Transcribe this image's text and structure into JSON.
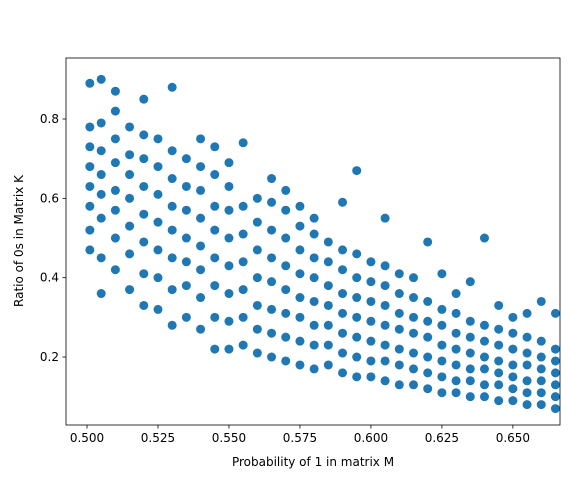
{
  "chart_data": {
    "type": "scatter",
    "xlabel": "Probability of 1 in matrix M",
    "ylabel": "Ratio of 0s in Matrix K",
    "color": "#1f77b4",
    "xlim": [
      0.4926,
      0.6666
    ],
    "ylim": [
      0.0286,
      0.9538
    ],
    "xticks": [
      {
        "value": 0.5,
        "label": "0.500"
      },
      0.525,
      {
        "value": 0.55,
        "label": "0.550"
      },
      0.575,
      {
        "value": 0.6,
        "label": "0.600"
      },
      0.625,
      {
        "value": 0.65,
        "label": "0.650"
      }
    ],
    "yticks": [
      0.2,
      0.4,
      0.6,
      0.8
    ],
    "x": [
      0.501,
      0.501,
      0.501,
      0.501,
      0.501,
      0.501,
      0.501,
      0.501,
      0.505,
      0.505,
      0.505,
      0.505,
      0.505,
      0.505,
      0.505,
      0.505,
      0.51,
      0.51,
      0.51,
      0.51,
      0.51,
      0.51,
      0.51,
      0.51,
      0.515,
      0.515,
      0.515,
      0.515,
      0.515,
      0.515,
      0.515,
      0.52,
      0.52,
      0.52,
      0.52,
      0.52,
      0.52,
      0.52,
      0.52,
      0.525,
      0.525,
      0.525,
      0.525,
      0.525,
      0.525,
      0.525,
      0.53,
      0.53,
      0.53,
      0.53,
      0.53,
      0.53,
      0.53,
      0.53,
      0.535,
      0.535,
      0.535,
      0.535,
      0.535,
      0.535,
      0.535,
      0.54,
      0.54,
      0.54,
      0.54,
      0.54,
      0.54,
      0.54,
      0.54,
      0.545,
      0.545,
      0.545,
      0.545,
      0.545,
      0.545,
      0.545,
      0.545,
      0.55,
      0.55,
      0.55,
      0.55,
      0.55,
      0.55,
      0.55,
      0.55,
      0.555,
      0.555,
      0.555,
      0.555,
      0.555,
      0.555,
      0.555,
      0.56,
      0.56,
      0.56,
      0.56,
      0.56,
      0.56,
      0.56,
      0.565,
      0.565,
      0.565,
      0.565,
      0.565,
      0.565,
      0.565,
      0.565,
      0.57,
      0.57,
      0.57,
      0.57,
      0.57,
      0.57,
      0.57,
      0.57,
      0.575,
      0.575,
      0.575,
      0.575,
      0.575,
      0.575,
      0.575,
      0.575,
      0.58,
      0.58,
      0.58,
      0.58,
      0.58,
      0.58,
      0.58,
      0.58,
      0.585,
      0.585,
      0.585,
      0.585,
      0.585,
      0.585,
      0.585,
      0.59,
      0.59,
      0.59,
      0.59,
      0.59,
      0.59,
      0.59,
      0.59,
      0.595,
      0.595,
      0.595,
      0.595,
      0.595,
      0.595,
      0.595,
      0.595,
      0.6,
      0.6,
      0.6,
      0.6,
      0.6,
      0.6,
      0.6,
      0.605,
      0.605,
      0.605,
      0.605,
      0.605,
      0.605,
      0.605,
      0.605,
      0.61,
      0.61,
      0.61,
      0.61,
      0.61,
      0.61,
      0.61,
      0.615,
      0.615,
      0.615,
      0.615,
      0.615,
      0.615,
      0.615,
      0.62,
      0.62,
      0.62,
      0.62,
      0.62,
      0.62,
      0.62,
      0.625,
      0.625,
      0.625,
      0.625,
      0.625,
      0.625,
      0.625,
      0.63,
      0.63,
      0.63,
      0.63,
      0.63,
      0.63,
      0.63,
      0.635,
      0.635,
      0.635,
      0.635,
      0.635,
      0.635,
      0.635,
      0.64,
      0.64,
      0.64,
      0.64,
      0.64,
      0.64,
      0.64,
      0.645,
      0.645,
      0.645,
      0.645,
      0.645,
      0.645,
      0.645,
      0.65,
      0.65,
      0.65,
      0.65,
      0.65,
      0.65,
      0.65,
      0.655,
      0.655,
      0.655,
      0.655,
      0.655,
      0.655,
      0.655,
      0.66,
      0.66,
      0.66,
      0.66,
      0.66,
      0.66,
      0.66,
      0.665,
      0.665,
      0.665,
      0.665,
      0.665,
      0.665,
      0.665
    ],
    "values": [
      0.47,
      0.52,
      0.58,
      0.63,
      0.68,
      0.73,
      0.78,
      0.89,
      0.36,
      0.45,
      0.55,
      0.61,
      0.66,
      0.72,
      0.79,
      0.9,
      0.42,
      0.5,
      0.57,
      0.62,
      0.69,
      0.75,
      0.82,
      0.87,
      0.37,
      0.46,
      0.53,
      0.6,
      0.66,
      0.71,
      0.78,
      0.33,
      0.41,
      0.49,
      0.56,
      0.63,
      0.7,
      0.76,
      0.85,
      0.32,
      0.4,
      0.47,
      0.54,
      0.61,
      0.68,
      0.75,
      0.28,
      0.37,
      0.45,
      0.52,
      0.58,
      0.65,
      0.72,
      0.88,
      0.3,
      0.38,
      0.44,
      0.5,
      0.57,
      0.63,
      0.7,
      0.27,
      0.35,
      0.42,
      0.48,
      0.55,
      0.62,
      0.68,
      0.75,
      0.22,
      0.3,
      0.38,
      0.45,
      0.52,
      0.58,
      0.66,
      0.73,
      0.22,
      0.29,
      0.36,
      0.43,
      0.5,
      0.57,
      0.63,
      0.69,
      0.23,
      0.3,
      0.37,
      0.44,
      0.51,
      0.58,
      0.74,
      0.21,
      0.27,
      0.33,
      0.4,
      0.47,
      0.54,
      0.6,
      0.2,
      0.26,
      0.32,
      0.39,
      0.45,
      0.52,
      0.59,
      0.65,
      0.19,
      0.25,
      0.31,
      0.37,
      0.43,
      0.5,
      0.57,
      0.62,
      0.18,
      0.24,
      0.3,
      0.35,
      0.41,
      0.47,
      0.53,
      0.58,
      0.17,
      0.23,
      0.28,
      0.34,
      0.4,
      0.45,
      0.51,
      0.55,
      0.18,
      0.23,
      0.28,
      0.33,
      0.38,
      0.44,
      0.49,
      0.16,
      0.21,
      0.26,
      0.31,
      0.36,
      0.42,
      0.47,
      0.59,
      0.15,
      0.2,
      0.25,
      0.3,
      0.35,
      0.4,
      0.46,
      0.67,
      0.15,
      0.19,
      0.24,
      0.29,
      0.34,
      0.39,
      0.44,
      0.14,
      0.19,
      0.23,
      0.28,
      0.33,
      0.38,
      0.43,
      0.55,
      0.13,
      0.18,
      0.22,
      0.27,
      0.31,
      0.36,
      0.41,
      0.13,
      0.17,
      0.21,
      0.26,
      0.3,
      0.35,
      0.4,
      0.12,
      0.16,
      0.2,
      0.25,
      0.29,
      0.34,
      0.49,
      0.11,
      0.15,
      0.19,
      0.23,
      0.28,
      0.32,
      0.41,
      0.11,
      0.14,
      0.18,
      0.22,
      0.26,
      0.31,
      0.36,
      0.1,
      0.14,
      0.17,
      0.21,
      0.25,
      0.29,
      0.39,
      0.1,
      0.13,
      0.17,
      0.2,
      0.24,
      0.28,
      0.5,
      0.09,
      0.13,
      0.16,
      0.19,
      0.23,
      0.27,
      0.33,
      0.09,
      0.12,
      0.15,
      0.18,
      0.22,
      0.26,
      0.3,
      0.08,
      0.11,
      0.14,
      0.18,
      0.21,
      0.25,
      0.31,
      0.08,
      0.11,
      0.14,
      0.17,
      0.2,
      0.24,
      0.34,
      0.07,
      0.1,
      0.13,
      0.16,
      0.19,
      0.22,
      0.31
    ]
  }
}
